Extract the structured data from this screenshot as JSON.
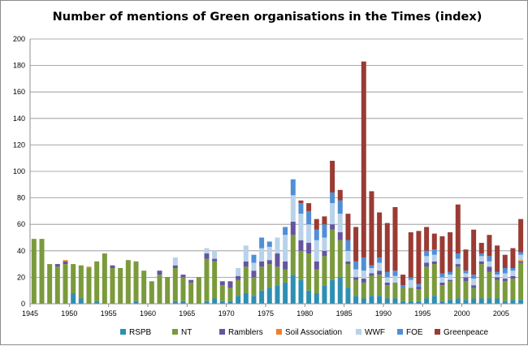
{
  "chart_data": {
    "type": "bar",
    "stacked": true,
    "title": "Number of mentions of Green organisations in the Times (index)",
    "xlabel": "",
    "ylabel": "",
    "ylim": [
      0,
      200
    ],
    "yticks": [
      0,
      20,
      40,
      60,
      80,
      100,
      120,
      140,
      160,
      180,
      200
    ],
    "xtick_labels": [
      "1945",
      "1950",
      "1955",
      "1960",
      "1965",
      "1970",
      "1975",
      "1980",
      "1985",
      "1990",
      "1995",
      "2000",
      "2005"
    ],
    "x_first": 1945,
    "x_last": 2007,
    "grid": "horizontal",
    "legend_position": "bottom",
    "series_colors": {
      "RSPB": "#2e8fb4",
      "NT": "#7a9a3c",
      "Ramblers": "#6554a0",
      "Soil Association": "#f07f2a",
      "WWF": "#b8d2ea",
      "FOE": "#4f8fd6",
      "Greenpeace": "#9a3b34"
    },
    "series": [
      {
        "name": "RSPB",
        "values": [
          0,
          0,
          0,
          0,
          0,
          8,
          4,
          0,
          2,
          0,
          0,
          0,
          0,
          2,
          0,
          0,
          0,
          0,
          2,
          2,
          0,
          0,
          2,
          4,
          2,
          2,
          6,
          8,
          6,
          10,
          12,
          14,
          16,
          22,
          18,
          10,
          8,
          14,
          18,
          20,
          12,
          6,
          4,
          6,
          6,
          4,
          4,
          2,
          2,
          2,
          4,
          6,
          2,
          3,
          4,
          3,
          4,
          4,
          4,
          4,
          2,
          3,
          3
        ]
      },
      {
        "name": "NT",
        "values": [
          49,
          49,
          30,
          28,
          30,
          22,
          25,
          27,
          30,
          38,
          27,
          27,
          33,
          30,
          25,
          17,
          22,
          20,
          25,
          18,
          16,
          20,
          32,
          28,
          12,
          10,
          12,
          20,
          14,
          18,
          18,
          14,
          10,
          30,
          22,
          28,
          18,
          22,
          38,
          28,
          18,
          12,
          12,
          15,
          16,
          10,
          12,
          10,
          10,
          9,
          24,
          24,
          12,
          14,
          24,
          14,
          8,
          26,
          20,
          14,
          15,
          16,
          28
        ]
      },
      {
        "name": "Ramblers",
        "values": [
          0,
          0,
          0,
          2,
          2,
          0,
          0,
          0,
          0,
          0,
          2,
          0,
          0,
          0,
          0,
          0,
          3,
          0,
          2,
          2,
          2,
          0,
          4,
          2,
          3,
          5,
          3,
          4,
          5,
          4,
          3,
          10,
          6,
          10,
          8,
          8,
          6,
          4,
          4,
          6,
          2,
          2,
          3,
          2,
          3,
          2,
          0,
          0,
          0,
          2,
          3,
          2,
          2,
          1,
          2,
          3,
          2,
          2,
          4,
          2,
          2,
          2,
          1
        ]
      },
      {
        "name": "Soil Association",
        "values": [
          0,
          0,
          0,
          0,
          1,
          0,
          0,
          1,
          0,
          0,
          0,
          0,
          0,
          0,
          0,
          0,
          0,
          0,
          0,
          0,
          0,
          0,
          0,
          0,
          0,
          0,
          0,
          0,
          0,
          0,
          0,
          0,
          0,
          0,
          0,
          0,
          0,
          0,
          0,
          0,
          0,
          0,
          0,
          0,
          0,
          0,
          0,
          0,
          0,
          0,
          0,
          0,
          0,
          0,
          0,
          0,
          0,
          0,
          0,
          0,
          0,
          0,
          1
        ]
      },
      {
        "name": "WWF",
        "values": [
          0,
          0,
          0,
          0,
          0,
          0,
          0,
          0,
          0,
          0,
          0,
          0,
          0,
          0,
          0,
          0,
          0,
          0,
          6,
          0,
          0,
          0,
          4,
          6,
          0,
          0,
          6,
          12,
          6,
          10,
          10,
          12,
          20,
          20,
          20,
          14,
          16,
          10,
          16,
          14,
          8,
          6,
          6,
          4,
          6,
          4,
          5,
          0,
          6,
          0,
          5,
          5,
          4,
          4,
          4,
          3,
          5,
          4,
          4,
          2,
          4,
          4,
          4
        ]
      },
      {
        "name": "FOE",
        "values": [
          0,
          0,
          0,
          0,
          0,
          0,
          0,
          0,
          0,
          0,
          0,
          0,
          0,
          0,
          0,
          0,
          0,
          0,
          0,
          0,
          0,
          0,
          0,
          0,
          0,
          0,
          0,
          0,
          6,
          8,
          4,
          0,
          6,
          12,
          8,
          10,
          8,
          10,
          8,
          10,
          8,
          6,
          10,
          2,
          4,
          4,
          4,
          2,
          2,
          2,
          4,
          4,
          3,
          2,
          4,
          2,
          3,
          2,
          4,
          2,
          4,
          2,
          2
        ]
      },
      {
        "name": "Greenpeace",
        "values": [
          0,
          0,
          0,
          0,
          0,
          0,
          0,
          0,
          0,
          0,
          0,
          0,
          0,
          0,
          0,
          0,
          0,
          0,
          0,
          0,
          0,
          0,
          0,
          0,
          0,
          0,
          0,
          0,
          0,
          0,
          0,
          0,
          0,
          0,
          2,
          6,
          8,
          6,
          24,
          8,
          20,
          26,
          148,
          56,
          34,
          37,
          48,
          8,
          34,
          40,
          18,
          12,
          28,
          30,
          37,
          16,
          34,
          8,
          16,
          20,
          10,
          15,
          25
        ]
      }
    ],
    "legend": [
      "RSPB",
      "NT",
      "Ramblers",
      "Soil Association",
      "WWF",
      "FOE",
      "Greenpeace"
    ]
  }
}
